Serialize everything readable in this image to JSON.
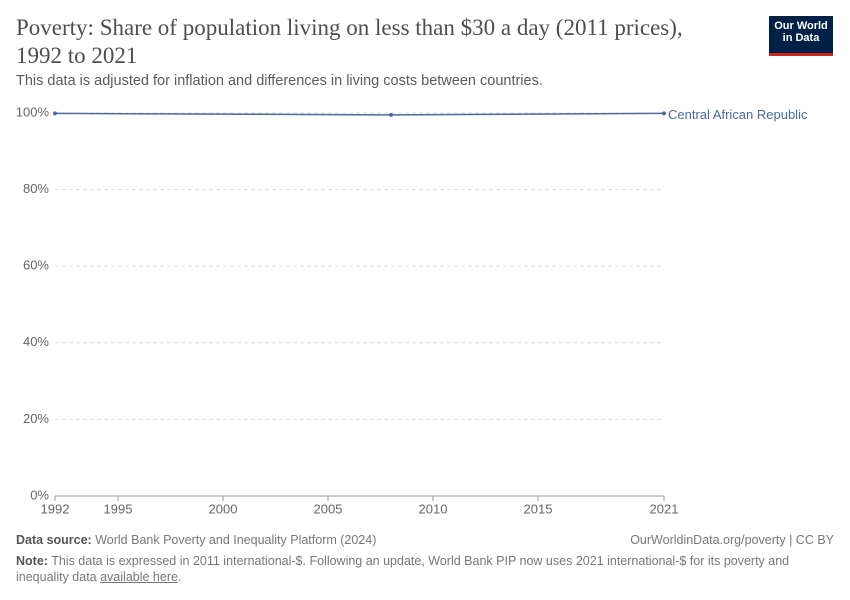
{
  "chart_data": {
    "type": "line",
    "title": "Poverty: Share of population living on less than $30 a day (2011 prices), 1992 to 2021",
    "subtitle": "This data is adjusted for inflation and differences in living costs between countries.",
    "logo": [
      "Our World",
      "in Data"
    ],
    "x": [
      1992,
      2008,
      2021
    ],
    "series": [
      {
        "name": "Central African Republic",
        "color": "#4c6a9c",
        "values": [
          99.9,
          99.5,
          99.9
        ]
      }
    ],
    "xlim": [
      1992,
      2021
    ],
    "xticks": [
      1992,
      1995,
      2000,
      2005,
      2010,
      2015,
      2021
    ],
    "ylim": [
      0,
      100
    ],
    "yticks": [
      {
        "value": 0,
        "label": "0%"
      },
      {
        "value": 20,
        "label": "20%"
      },
      {
        "value": 40,
        "label": "40%"
      },
      {
        "value": 60,
        "label": "60%"
      },
      {
        "value": 80,
        "label": "80%"
      },
      {
        "value": 100,
        "label": "100%"
      }
    ],
    "grid": true,
    "source_label": "Data source:",
    "source": "World Bank Poverty and Inequality Platform (2024)",
    "license": "OurWorldinData.org/poverty | CC BY",
    "note_label": "Note:",
    "note": "This data is expressed in 2011 international-$. Following an update, World Bank PIP now uses 2021 international-$ for its poverty and inequality data",
    "note_link": "available here",
    "note_end": "."
  }
}
